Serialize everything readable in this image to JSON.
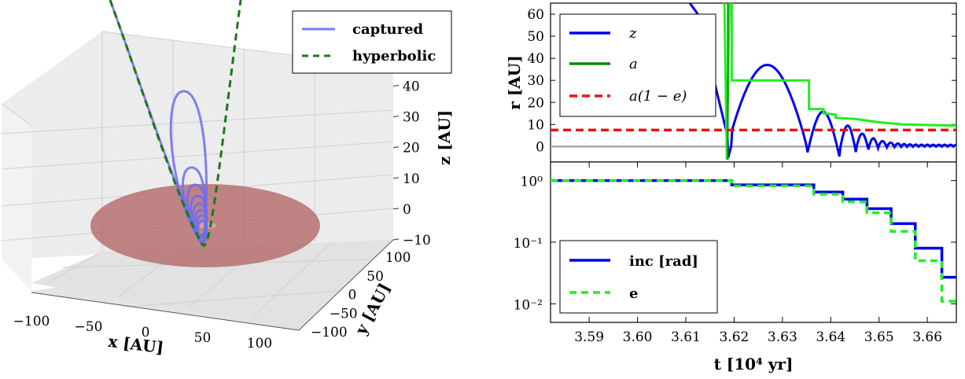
{
  "chart_data": [
    {
      "type": "line3d",
      "xlabel": "x [AU]",
      "ylabel": "y [AU]",
      "zlabel": "z [AU]",
      "xticks": [
        "−100",
        "−50",
        "0",
        "50",
        "100"
      ],
      "yticks": [
        "100",
        "50",
        "0",
        "−50",
        "−100"
      ],
      "zticks": [
        "40",
        "30",
        "20",
        "10",
        "0",
        "−10"
      ],
      "xlim": [
        -130,
        130
      ],
      "ylim": [
        -130,
        130
      ],
      "zlim": [
        -10,
        45
      ],
      "legend": {
        "placement": "top-right",
        "entries": [
          "captured",
          "hyperbolic"
        ]
      },
      "series": [
        {
          "name": "captured",
          "color": "#7b7bf0",
          "style": "solid",
          "loop_apex_z": [
            33,
            10,
            6,
            4,
            2.5,
            1.5,
            0.8,
            0.3
          ]
        },
        {
          "name": "hyperbolic",
          "color": "#1a7a1a",
          "style": "dashed",
          "pericenter_z": -8
        }
      ],
      "disk": {
        "color": "#a85050",
        "radius_au": 100
      },
      "grid": true
    },
    {
      "type": "line",
      "ylabel": "r [AU]",
      "xlim": [
        3.582,
        3.666
      ],
      "ylim": [
        -7,
        65
      ],
      "yticks": [
        "0",
        "10",
        "20",
        "30",
        "40",
        "50",
        "60"
      ],
      "yticks_values": [
        0,
        10,
        20,
        30,
        40,
        50,
        60
      ],
      "legend": {
        "placement": "top-left",
        "entries": [
          "z",
          "a",
          "a(1 − e)"
        ]
      },
      "series": [
        {
          "name": "z",
          "color": "#0000ee",
          "style": "solid"
        },
        {
          "name": "a",
          "color": "#0a8a0a",
          "style": "solid"
        },
        {
          "name": "a(1 − e)",
          "color": "#ee1111",
          "style": "dashed",
          "values_const": 7.5
        }
      ],
      "step_a": {
        "x": [
          3.618,
          3.619,
          3.6195,
          3.6355,
          3.6375,
          3.641,
          3.666
        ],
        "y": [
          65,
          30,
          30,
          30,
          17,
          14,
          9.5
        ]
      },
      "reference_line_y": 0
    },
    {
      "type": "line",
      "xlabel": "t [10⁴ yr]",
      "yscale": "log",
      "ylim": [
        0.005,
        2
      ],
      "xlim": [
        3.582,
        3.666
      ],
      "xticks": [
        "3.59",
        "3.60",
        "3.61",
        "3.62",
        "3.63",
        "3.64",
        "3.65",
        "3.66"
      ],
      "xticks_values": [
        3.59,
        3.6,
        3.61,
        3.62,
        3.63,
        3.64,
        3.65,
        3.66
      ],
      "yticks": [
        "10⁰",
        "10⁻¹",
        "10⁻²"
      ],
      "yticks_values": [
        1,
        0.1,
        0.01
      ],
      "legend": {
        "placement": "bottom-left",
        "entries": [
          "inc [rad]",
          "e"
        ]
      },
      "series": [
        {
          "name": "inc [rad]",
          "color": "#0000ee",
          "style": "solid",
          "x": [
            3.582,
            3.6185,
            3.6195,
            3.633,
            3.64,
            3.645,
            3.65,
            3.655,
            3.66,
            3.666
          ],
          "y": [
            1.0,
            1.0,
            0.85,
            0.85,
            0.65,
            0.5,
            0.35,
            0.2,
            0.08,
            0.027
          ]
        },
        {
          "name": "e",
          "color": "#22ee22",
          "style": "dashed",
          "x": [
            3.582,
            3.6185,
            3.6195,
            3.633,
            3.64,
            3.645,
            3.65,
            3.655,
            3.66,
            3.666
          ],
          "y": [
            1.0,
            1.0,
            0.82,
            0.82,
            0.6,
            0.45,
            0.3,
            0.15,
            0.05,
            0.011
          ]
        }
      ]
    }
  ]
}
